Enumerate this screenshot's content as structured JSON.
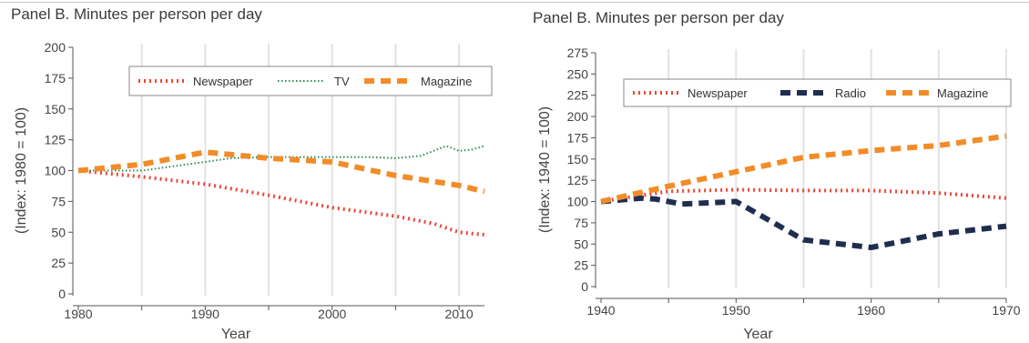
{
  "chart_data": [
    {
      "type": "line",
      "title": "Panel B. Minutes per person per day",
      "xlabel": "Year",
      "ylabel": "(Index: 1980 = 100)",
      "xlim": [
        1980,
        2012
      ],
      "ylim": [
        0,
        200
      ],
      "xticks": [
        1980,
        1990,
        2000,
        2010
      ],
      "yticks": [
        0,
        25,
        50,
        75,
        100,
        125,
        150,
        175,
        200
      ],
      "grid": "vertical",
      "legend_placement": "top-right",
      "series": [
        {
          "name": "Newspaper",
          "color": "#e8473a",
          "style": "dotted",
          "x": [
            1980,
            1985,
            1990,
            1995,
            2000,
            2005,
            2008,
            2010,
            2012
          ],
          "y": [
            100,
            95,
            89,
            80,
            70,
            63,
            57,
            50,
            48
          ]
        },
        {
          "name": "TV",
          "color": "#2e8b57",
          "style": "fine-dotted",
          "x": [
            1980,
            1985,
            1990,
            1992,
            1995,
            2000,
            2003,
            2005,
            2007,
            2009,
            2010,
            2011,
            2012
          ],
          "y": [
            100,
            100,
            107,
            110,
            111,
            111,
            111,
            110,
            112,
            120,
            116,
            117,
            120
          ]
        },
        {
          "name": "Magazine",
          "color": "#f28c28",
          "style": "thick-dashed",
          "x": [
            1980,
            1985,
            1990,
            1995,
            2000,
            2005,
            2010,
            2012
          ],
          "y": [
            100,
            105,
            115,
            110,
            107,
            96,
            88,
            83
          ]
        }
      ]
    },
    {
      "type": "line",
      "title": "Panel B. Minutes per person per day",
      "xlabel": "Year",
      "ylabel": "(Index: 1940 = 100)",
      "xlim": [
        1940,
        1970
      ],
      "ylim": [
        0,
        275
      ],
      "xticks": [
        1940,
        1950,
        1960,
        1970
      ],
      "yticks": [
        0,
        25,
        50,
        75,
        100,
        125,
        150,
        175,
        200,
        225,
        250,
        275
      ],
      "grid": "vertical",
      "legend_placement": "top",
      "series": [
        {
          "name": "Newspaper",
          "color": "#e8473a",
          "style": "dotted",
          "x": [
            1940,
            1945,
            1950,
            1955,
            1960,
            1965,
            1970
          ],
          "y": [
            100,
            112,
            114,
            113,
            113,
            110,
            104
          ]
        },
        {
          "name": "Radio",
          "color": "#1f2e4e",
          "style": "thick-dashed",
          "x": [
            1940,
            1943,
            1944,
            1946,
            1950,
            1955,
            1960,
            1965,
            1970
          ],
          "y": [
            100,
            104,
            103,
            97,
            100,
            55,
            46,
            62,
            71
          ]
        },
        {
          "name": "Magazine",
          "color": "#f28c28",
          "style": "thick-dashed",
          "x": [
            1940,
            1945,
            1950,
            1955,
            1960,
            1965,
            1970
          ],
          "y": [
            100,
            118,
            135,
            152,
            160,
            166,
            177
          ]
        }
      ]
    }
  ]
}
